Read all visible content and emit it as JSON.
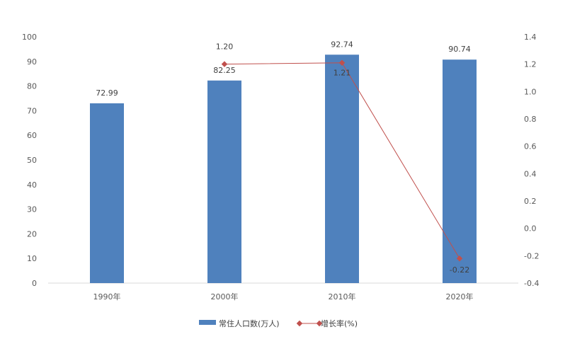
{
  "chart_data": {
    "type": "bar",
    "categories": [
      "1990年",
      "2000年",
      "2010年",
      "2020年"
    ],
    "series": [
      {
        "name": "常住人口数(万人)",
        "type": "bar",
        "axis": "left",
        "values": [
          72.99,
          82.25,
          92.74,
          90.74
        ],
        "labels": [
          "72.99",
          "82.25",
          "92.74",
          "90.74"
        ],
        "color": "#4f81bd"
      },
      {
        "name": "增长率(%)",
        "type": "line",
        "axis": "right",
        "values": [
          null,
          1.2,
          1.21,
          -0.22
        ],
        "labels": [
          "",
          "1.20",
          "1.21",
          "-0.22"
        ],
        "color": "#c0504d"
      }
    ],
    "left_axis": {
      "min": 0,
      "max": 100,
      "step": 10,
      "ticks": [
        "0",
        "10",
        "20",
        "30",
        "40",
        "50",
        "60",
        "70",
        "80",
        "90",
        "100"
      ]
    },
    "right_axis": {
      "min": -0.4,
      "max": 1.4,
      "step": 0.2,
      "ticks": [
        "-0.4",
        "-0.2",
        "0.0",
        "0.2",
        "0.4",
        "0.6",
        "0.8",
        "1.0",
        "1.2",
        "1.4"
      ]
    },
    "title": "",
    "xlabel": "",
    "ylabel": "",
    "grid": false,
    "legend_position": "bottom"
  }
}
